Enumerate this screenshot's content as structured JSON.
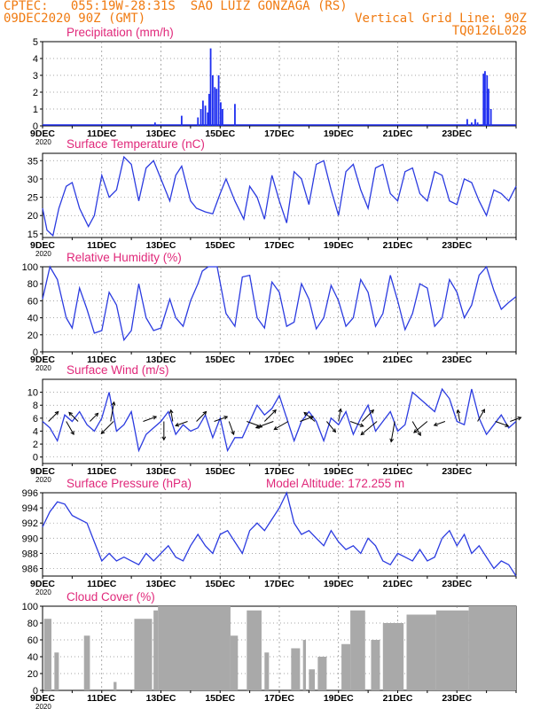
{
  "header": {
    "line1": "CPTEC:   055:19W-28:31S  SAO LUIZ GONZAGA (RS)",
    "line2_left": "09DEC2020 90Z (GMT)",
    "line2_right": "Vertical Grid Line: 90Z",
    "line3_right": "TQ0126L028"
  },
  "x_labels": [
    "9DEC",
    "11DEC",
    "13DEC",
    "15DEC",
    "17DEC",
    "19DEC",
    "21DEC",
    "23DEC"
  ],
  "year_label": "2020",
  "colors": {
    "header": "#f07a10",
    "title": "#e0287a",
    "line": "#2b3be0",
    "cloud": "#a9a9a9",
    "bars": "#1e2ef0"
  },
  "chart_data": [
    {
      "id": "precip",
      "type": "bar",
      "title": "Precipitation  (mm/h)",
      "ylim": [
        0,
        5
      ],
      "yticks": [
        0,
        1,
        2,
        3,
        4,
        5
      ],
      "x_unit": "days since 9DEC 00Z",
      "bars": [
        [
          3.8,
          0.2
        ],
        [
          4.7,
          0.6
        ],
        [
          5.25,
          0.5
        ],
        [
          5.35,
          1.0
        ],
        [
          5.42,
          1.5
        ],
        [
          5.5,
          1.2
        ],
        [
          5.58,
          0.8
        ],
        [
          5.63,
          1.9
        ],
        [
          5.68,
          4.6
        ],
        [
          5.75,
          3.0
        ],
        [
          5.82,
          2.3
        ],
        [
          5.88,
          2.2
        ],
        [
          5.95,
          3.0
        ],
        [
          6.02,
          1.4
        ],
        [
          6.08,
          1.0
        ],
        [
          6.5,
          1.3
        ],
        [
          14.35,
          0.4
        ],
        [
          14.5,
          0.2
        ],
        [
          14.62,
          0.4
        ],
        [
          14.7,
          0.2
        ],
        [
          14.9,
          3.1
        ],
        [
          14.95,
          3.25
        ],
        [
          15.02,
          3.0
        ],
        [
          15.07,
          2.2
        ],
        [
          15.15,
          1.0
        ]
      ]
    },
    {
      "id": "temperature",
      "type": "line",
      "title": "Surface Temperature (nC)",
      "ylim": [
        14,
        37
      ],
      "yticks": [
        15,
        20,
        25,
        30,
        35
      ],
      "x": [
        0.0,
        0.15,
        0.35,
        0.55,
        0.8,
        1.0,
        1.25,
        1.55,
        1.75,
        2.0,
        2.25,
        2.5,
        2.75,
        3.0,
        3.25,
        3.5,
        3.75,
        4.0,
        4.3,
        4.5,
        4.7,
        5.0,
        5.2,
        5.5,
        5.75,
        6.0,
        6.2,
        6.5,
        6.8,
        7.0,
        7.25,
        7.5,
        7.75,
        8.0,
        8.25,
        8.5,
        8.75,
        9.0,
        9.25,
        9.5,
        9.75,
        10.0,
        10.25,
        10.5,
        10.75,
        11.0,
        11.25,
        11.5,
        11.75,
        12.0,
        12.25,
        12.5,
        12.75,
        13.0,
        13.25,
        13.5,
        13.75,
        14.0,
        14.25,
        14.5,
        14.75,
        15.0,
        15.25,
        15.5,
        15.75,
        16.0
      ],
      "y": [
        22,
        16,
        14.5,
        22,
        28,
        29,
        22,
        17,
        20,
        31,
        25,
        27,
        36,
        34,
        24,
        33,
        35,
        30,
        24,
        31,
        33.5,
        24,
        22,
        21,
        20.5,
        26,
        30,
        24,
        19,
        28,
        25,
        19,
        31,
        24,
        18,
        32,
        30,
        23,
        34,
        35,
        27,
        20,
        32,
        34,
        27,
        22,
        33,
        34,
        26,
        24,
        32,
        33,
        26,
        24,
        32,
        31,
        24,
        23,
        30,
        29,
        24,
        20,
        27,
        26,
        24,
        28
      ]
    },
    {
      "id": "humidity",
      "type": "line",
      "title": "Relative Humidity  (%)",
      "ylim": [
        0,
        100
      ],
      "yticks": [
        0,
        20,
        40,
        60,
        80,
        100
      ],
      "x": [
        0.0,
        0.25,
        0.5,
        0.8,
        1.0,
        1.25,
        1.5,
        1.75,
        2.0,
        2.25,
        2.5,
        2.75,
        3.0,
        3.25,
        3.5,
        3.75,
        4.0,
        4.3,
        4.5,
        4.75,
        5.0,
        5.25,
        5.4,
        5.6,
        5.9,
        6.2,
        6.5,
        6.75,
        7.0,
        7.25,
        7.5,
        7.75,
        8.0,
        8.25,
        8.5,
        8.75,
        9.0,
        9.25,
        9.5,
        9.75,
        10.0,
        10.25,
        10.5,
        10.75,
        11.0,
        11.25,
        11.5,
        11.75,
        12.0,
        12.25,
        12.5,
        12.75,
        13.0,
        13.25,
        13.5,
        13.75,
        14.0,
        14.25,
        14.5,
        14.75,
        15.0,
        15.25,
        15.5,
        15.75,
        16.0
      ],
      "y": [
        62,
        100,
        85,
        40,
        28,
        75,
        50,
        22,
        25,
        70,
        55,
        14,
        25,
        80,
        40,
        25,
        28,
        62,
        40,
        30,
        60,
        80,
        95,
        100,
        100,
        45,
        30,
        88,
        90,
        40,
        28,
        82,
        70,
        30,
        35,
        80,
        62,
        27,
        40,
        78,
        60,
        30,
        40,
        85,
        70,
        30,
        45,
        90,
        60,
        26,
        45,
        80,
        75,
        30,
        40,
        85,
        70,
        40,
        55,
        90,
        100,
        72,
        50,
        58,
        65
      ]
    },
    {
      "id": "wind",
      "type": "line",
      "title": "Surface Wind  (m/s)",
      "ylim": [
        -1,
        12
      ],
      "yticks": [
        0,
        2,
        4,
        6,
        8,
        10
      ],
      "x": [
        0.0,
        0.25,
        0.5,
        0.75,
        1.0,
        1.25,
        1.5,
        1.75,
        2.0,
        2.25,
        2.5,
        2.75,
        3.0,
        3.25,
        3.5,
        3.75,
        4.0,
        4.25,
        4.5,
        4.75,
        5.0,
        5.25,
        5.5,
        5.75,
        6.0,
        6.25,
        6.5,
        6.75,
        7.0,
        7.25,
        7.5,
        7.75,
        8.0,
        8.25,
        8.5,
        8.75,
        9.0,
        9.25,
        9.5,
        9.75,
        10.0,
        10.25,
        10.5,
        10.75,
        11.0,
        11.25,
        11.5,
        11.75,
        12.0,
        12.25,
        12.5,
        12.75,
        13.0,
        13.25,
        13.5,
        13.75,
        14.0,
        14.25,
        14.5,
        14.75,
        15.0,
        15.25,
        15.5,
        15.75,
        16.0
      ],
      "y": [
        5.5,
        4.5,
        2.5,
        6.5,
        5.5,
        7,
        5,
        4,
        6,
        10,
        4,
        5,
        7,
        1,
        3.5,
        4.5,
        5.5,
        7,
        3.5,
        5,
        4,
        4.5,
        6.5,
        3,
        6,
        1,
        3,
        3,
        5.5,
        8,
        6.5,
        7.5,
        9.5,
        6,
        2.5,
        5.5,
        7,
        5.5,
        2.5,
        6,
        5,
        7,
        3.5,
        6,
        8,
        4,
        5.5,
        7,
        4,
        5,
        10,
        9,
        8,
        7,
        10.5,
        9,
        5.5,
        5,
        10.5,
        6,
        3.5,
        5,
        6.5,
        4.5,
        5.5
      ],
      "arrows": [
        [
          0.2,
          45,
          0.6
        ],
        [
          0.8,
          300,
          0.65
        ],
        [
          1.2,
          135,
          0.55
        ],
        [
          1.6,
          45,
          0.5
        ],
        [
          2.3,
          80,
          0.85
        ],
        [
          2.4,
          225,
          0.75
        ],
        [
          3.4,
          20,
          0.6
        ],
        [
          4.1,
          270,
          0.8
        ],
        [
          4.4,
          100,
          0.5
        ],
        [
          4.9,
          200,
          0.55
        ],
        [
          5.2,
          45,
          0.6
        ],
        [
          5.8,
          20,
          0.6
        ],
        [
          6.3,
          290,
          0.6
        ],
        [
          6.9,
          340,
          0.7
        ],
        [
          7.5,
          45,
          0.7
        ],
        [
          7.8,
          200,
          0.8
        ],
        [
          8.3,
          210,
          0.7
        ],
        [
          8.7,
          20,
          0.6
        ],
        [
          9.2,
          140,
          0.6
        ],
        [
          9.6,
          310,
          0.6
        ],
        [
          10.0,
          80,
          0.55
        ],
        [
          10.4,
          340,
          0.6
        ],
        [
          10.8,
          45,
          0.7
        ],
        [
          11.3,
          220,
          0.9
        ],
        [
          11.9,
          260,
          0.9
        ],
        [
          12.5,
          300,
          0.7
        ],
        [
          13.0,
          220,
          0.75
        ],
        [
          13.6,
          200,
          0.5
        ],
        [
          14.1,
          100,
          0.5
        ],
        [
          14.7,
          60,
          0.6
        ],
        [
          15.3,
          340,
          0.6
        ],
        [
          15.8,
          20,
          0.5
        ]
      ]
    },
    {
      "id": "pressure",
      "type": "line",
      "title": "Surface Pressure (hPa)",
      "subtitle": "Model Altitude: 172.255  m",
      "ylim": [
        985,
        996
      ],
      "yticks": [
        986,
        988,
        990,
        992,
        994,
        996
      ],
      "x": [
        0.0,
        0.25,
        0.5,
        0.75,
        1.0,
        1.25,
        1.5,
        1.75,
        2.0,
        2.25,
        2.5,
        2.75,
        3.0,
        3.25,
        3.5,
        3.75,
        4.0,
        4.25,
        4.5,
        4.75,
        5.0,
        5.25,
        5.5,
        5.75,
        6.0,
        6.25,
        6.5,
        6.75,
        7.0,
        7.25,
        7.5,
        7.75,
        8.0,
        8.25,
        8.5,
        8.75,
        9.0,
        9.25,
        9.5,
        9.75,
        10.0,
        10.25,
        10.5,
        10.75,
        11.0,
        11.25,
        11.5,
        11.75,
        12.0,
        12.25,
        12.5,
        12.75,
        13.0,
        13.25,
        13.5,
        13.75,
        14.0,
        14.25,
        14.5,
        14.75,
        15.0,
        15.25,
        15.5,
        15.75,
        16.0
      ],
      "y": [
        991.5,
        993.5,
        994.8,
        994.5,
        993,
        992.5,
        992,
        989.5,
        987,
        988,
        987,
        987.5,
        987,
        986.5,
        988,
        987,
        988,
        989,
        987.5,
        987,
        989,
        990.5,
        989,
        988,
        990.5,
        991,
        989.5,
        988,
        991,
        992,
        991,
        992.5,
        994,
        996,
        992,
        990.5,
        991,
        990,
        989,
        991,
        989.5,
        988.5,
        989,
        988,
        990,
        989,
        987,
        986.5,
        988,
        987.5,
        987,
        988.5,
        987,
        987.5,
        990,
        991,
        989,
        990.5,
        988,
        989,
        987.5,
        986,
        987,
        986.5,
        985
      ]
    },
    {
      "id": "cloud",
      "type": "area",
      "title": "Cloud Cover (%)",
      "ylim": [
        0,
        100
      ],
      "yticks": [
        0,
        20,
        40,
        60,
        80,
        100
      ],
      "segments": [
        [
          0.05,
          0.3,
          85
        ],
        [
          0.4,
          0.55,
          45
        ],
        [
          1.4,
          1.6,
          65
        ],
        [
          2.4,
          2.5,
          10
        ],
        [
          3.1,
          3.7,
          85
        ],
        [
          3.75,
          3.9,
          95
        ],
        [
          3.9,
          6.35,
          100
        ],
        [
          6.35,
          6.6,
          65
        ],
        [
          6.9,
          7.4,
          95
        ],
        [
          7.5,
          7.65,
          45
        ],
        [
          8.4,
          8.7,
          50
        ],
        [
          8.8,
          8.9,
          60
        ],
        [
          9.0,
          9.2,
          25
        ],
        [
          9.3,
          9.6,
          40
        ],
        [
          10.1,
          10.4,
          55
        ],
        [
          10.4,
          10.9,
          95
        ],
        [
          11.1,
          11.4,
          60
        ],
        [
          11.5,
          12.2,
          80
        ],
        [
          12.3,
          13.3,
          90
        ],
        [
          13.3,
          14.4,
          95
        ],
        [
          14.4,
          16.0,
          100
        ]
      ]
    }
  ]
}
